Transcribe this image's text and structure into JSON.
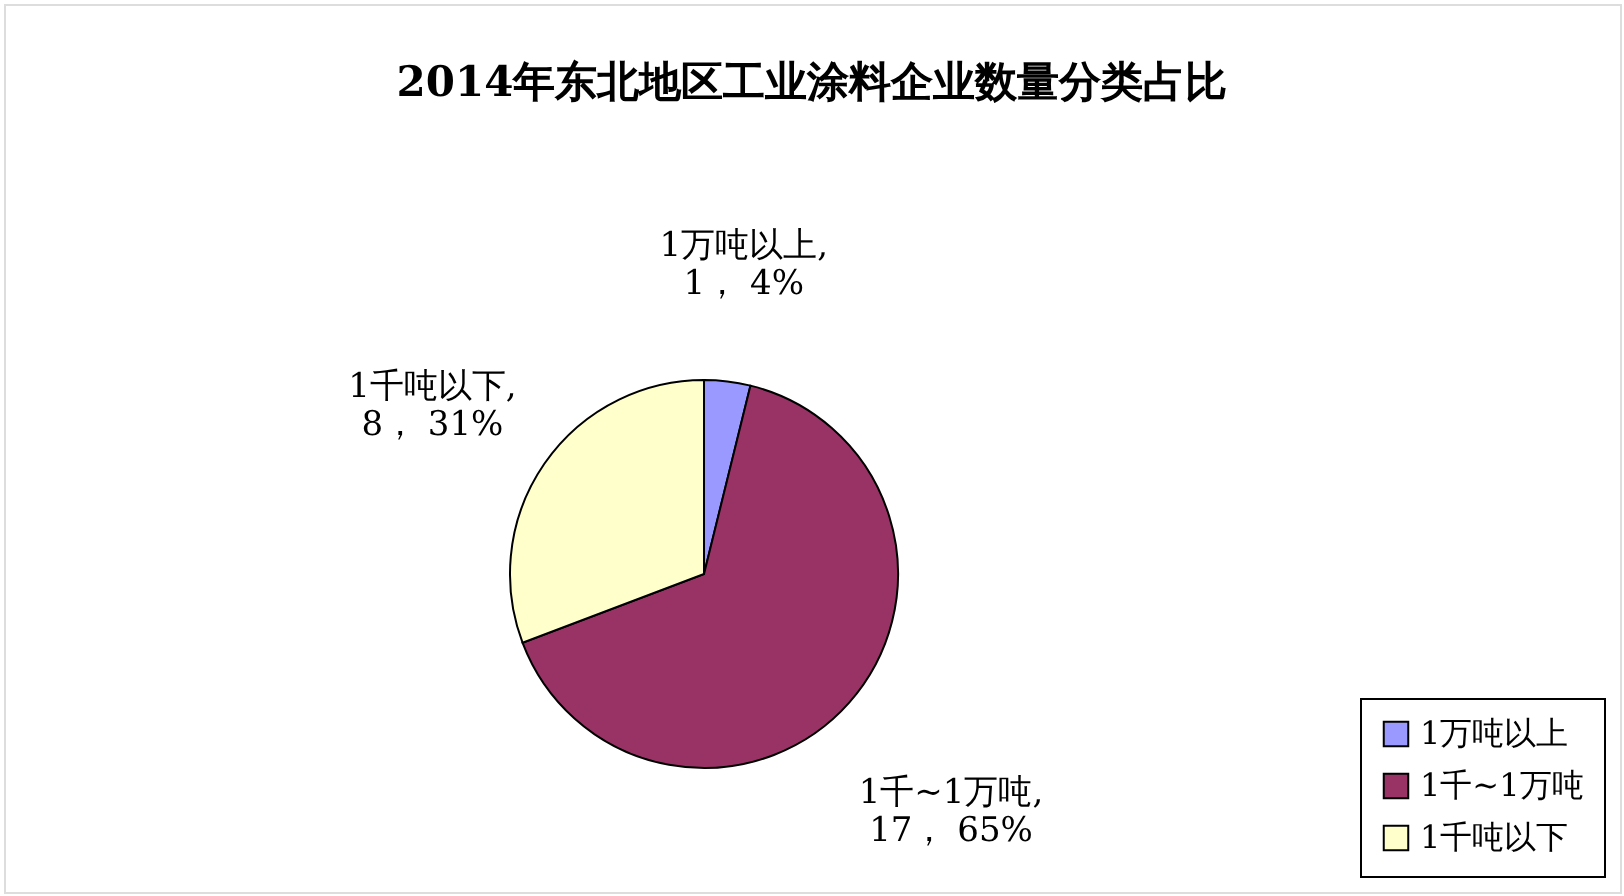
{
  "chart_data": {
    "type": "pie",
    "title": "2014年东北地区工业涂料企业数量分类占比",
    "categories": [
      "1万吨以上",
      "1千~1万吨",
      "1千吨以下"
    ],
    "values": [
      1,
      17,
      8
    ],
    "colors": [
      "#9999ff",
      "#993366",
      "#ffffcc"
    ],
    "value_labels": [
      "1万吨以上,\n1， 4%",
      "1千~1万吨,\n17， 65%",
      "1千吨以下,\n8， 31%"
    ],
    "legend": "bottom right"
  }
}
